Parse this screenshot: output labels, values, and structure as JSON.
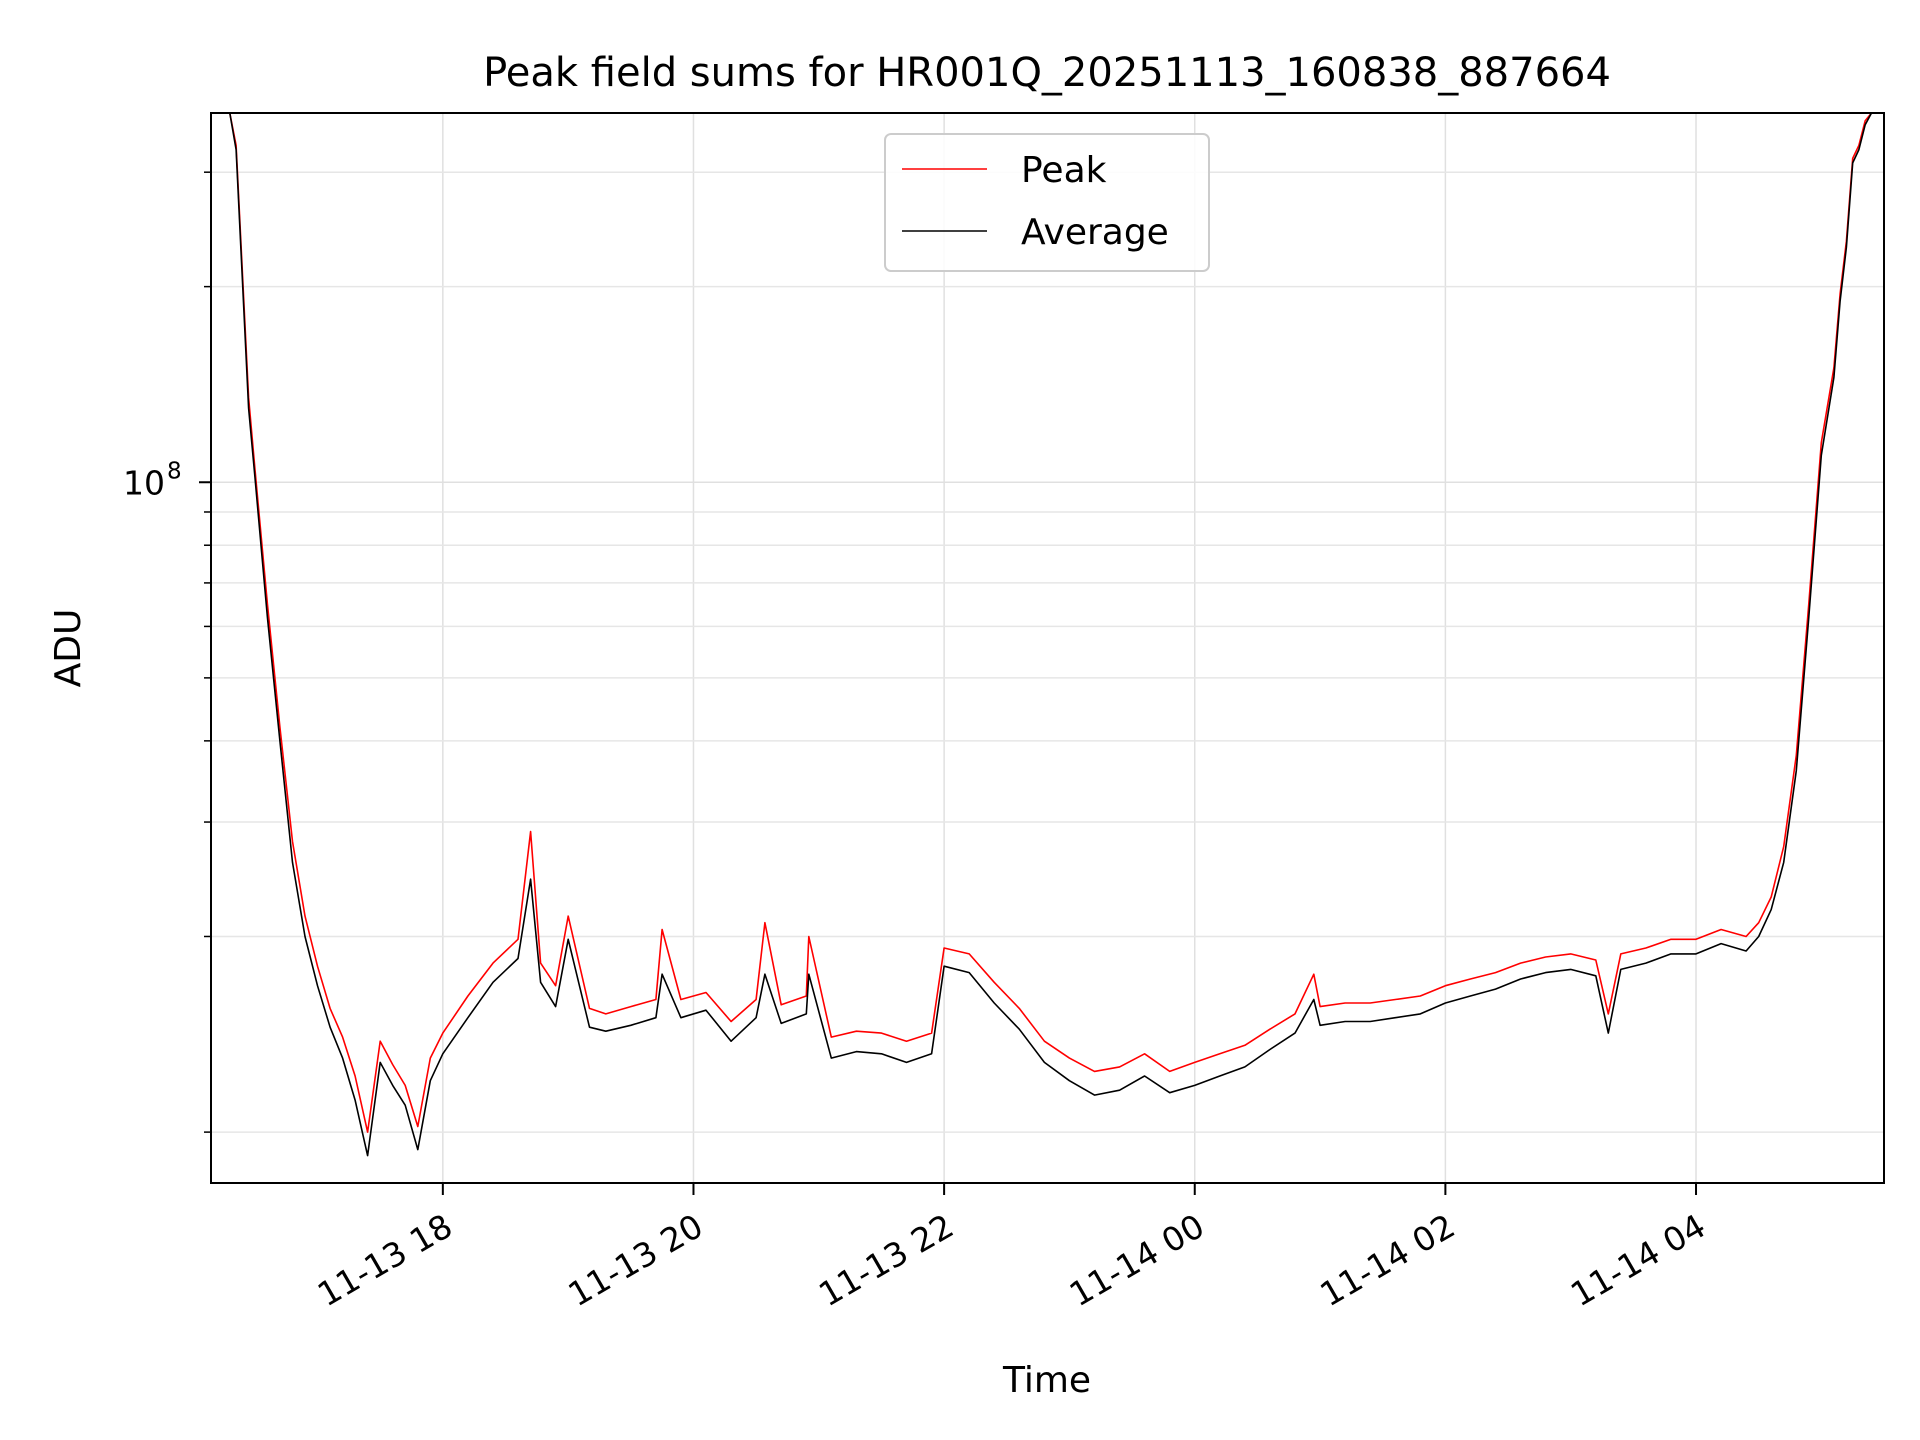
{
  "chart_data": {
    "type": "line",
    "title": "Peak field sums for HR001Q_20251113_160838_887664",
    "xlabel": "Time",
    "ylabel": "ADU",
    "yscale": "log",
    "grid": true,
    "legend_location": "upper center",
    "x_unit": "hours since 2025-11-13 00:00",
    "xlim": [
      16.15,
      29.5
    ],
    "ylim": [
      8350000.0,
      370000000.0
    ],
    "x_ticks": [
      {
        "value": 18,
        "label": "11-13 18"
      },
      {
        "value": 20,
        "label": "11-13 20"
      },
      {
        "value": 22,
        "label": "11-13 22"
      },
      {
        "value": 24,
        "label": "11-14 00"
      },
      {
        "value": 26,
        "label": "11-14 02"
      },
      {
        "value": 28,
        "label": "11-14 04"
      }
    ],
    "y_major_ticks": [
      {
        "value": 100000000,
        "label": "10",
        "exponent": "8"
      }
    ],
    "y_minor_ticks": [
      10000000.0,
      20000000.0,
      30000000.0,
      40000000.0,
      50000000.0,
      60000000.0,
      70000000.0,
      80000000.0,
      90000000.0,
      200000000.0,
      300000000.0
    ],
    "series": [
      {
        "name": "Peak",
        "color": "#ff0000",
        "x": [
          16.15,
          16.3,
          16.35,
          16.45,
          16.5,
          16.6,
          16.7,
          16.8,
          16.9,
          17.0,
          17.1,
          17.2,
          17.3,
          17.4,
          17.5,
          17.6,
          17.7,
          17.8,
          17.9,
          18.0,
          18.2,
          18.4,
          18.6,
          18.7,
          18.78,
          18.9,
          19.0,
          19.17,
          19.3,
          19.5,
          19.7,
          19.75,
          19.9,
          20.1,
          20.3,
          20.5,
          20.57,
          20.7,
          20.9,
          20.92,
          21.1,
          21.3,
          21.5,
          21.7,
          21.9,
          22.0,
          22.2,
          22.4,
          22.6,
          22.8,
          23.0,
          23.2,
          23.4,
          23.6,
          23.8,
          24.0,
          24.2,
          24.4,
          24.6,
          24.8,
          24.95,
          25.0,
          25.2,
          25.4,
          25.6,
          25.8,
          26.0,
          26.2,
          26.4,
          26.6,
          26.8,
          27.0,
          27.2,
          27.3,
          27.4,
          27.6,
          27.8,
          28.0,
          28.2,
          28.4,
          28.5,
          28.6,
          28.7,
          28.8,
          28.9,
          29.0,
          29.1,
          29.15,
          29.2,
          29.25,
          29.3,
          29.35,
          29.4,
          29.5
        ],
        "y": [
          370000000.0,
          370000000.0,
          330000000.0,
          135000000.0,
          105000000.0,
          65000000.0,
          42000000.0,
          28000000.0,
          21500000.0,
          18000000.0,
          15500000.0,
          14000000.0,
          12200000.0,
          10000000.0,
          13800000.0,
          12700000.0,
          11800000.0,
          10200000.0,
          13000000.0,
          14200000.0,
          16200000.0,
          18200000.0,
          19800000.0,
          29000000.0,
          18200000.0,
          16800000.0,
          21500000.0,
          15500000.0,
          15200000.0,
          15600000.0,
          16000000.0,
          20500000.0,
          16000000.0,
          16400000.0,
          14800000.0,
          16000000.0,
          21000000.0,
          15700000.0,
          16200000.0,
          20000000.0,
          14000000.0,
          14300000.0,
          14200000.0,
          13800000.0,
          14200000.0,
          19200000.0,
          18800000.0,
          17000000.0,
          15500000.0,
          13800000.0,
          13000000.0,
          12400000.0,
          12600000.0,
          13200000.0,
          12400000.0,
          12800000.0,
          13200000.0,
          13600000.0,
          14400000.0,
          15200000.0,
          17500000.0,
          15600000.0,
          15800000.0,
          15800000.0,
          16000000.0,
          16200000.0,
          16800000.0,
          17200000.0,
          17600000.0,
          18200000.0,
          18600000.0,
          18800000.0,
          18400000.0,
          15200000.0,
          18800000.0,
          19200000.0,
          19800000.0,
          19800000.0,
          20500000.0,
          20000000.0,
          21000000.0,
          23000000.0,
          27500000.0,
          38000000.0,
          65000000.0,
          115000000.0,
          150000000.0,
          195000000.0,
          235000000.0,
          315000000.0,
          330000000.0,
          360000000.0,
          370000000.0,
          370000000.0
        ]
      },
      {
        "name": "Average",
        "color": "#000000",
        "x": [
          16.15,
          16.3,
          16.35,
          16.45,
          16.5,
          16.6,
          16.7,
          16.8,
          16.9,
          17.0,
          17.1,
          17.2,
          17.3,
          17.4,
          17.5,
          17.6,
          17.7,
          17.8,
          17.9,
          18.0,
          18.2,
          18.4,
          18.6,
          18.7,
          18.78,
          18.9,
          19.0,
          19.17,
          19.3,
          19.5,
          19.7,
          19.75,
          19.9,
          20.1,
          20.3,
          20.5,
          20.57,
          20.7,
          20.9,
          20.92,
          21.1,
          21.3,
          21.5,
          21.7,
          21.9,
          22.0,
          22.2,
          22.4,
          22.6,
          22.8,
          23.0,
          23.2,
          23.4,
          23.6,
          23.8,
          24.0,
          24.2,
          24.4,
          24.6,
          24.8,
          24.95,
          25.0,
          25.2,
          25.4,
          25.6,
          25.8,
          26.0,
          26.2,
          26.4,
          26.6,
          26.8,
          27.0,
          27.2,
          27.3,
          27.4,
          27.6,
          27.8,
          28.0,
          28.2,
          28.4,
          28.5,
          28.6,
          28.7,
          28.8,
          28.9,
          29.0,
          29.1,
          29.15,
          29.2,
          29.25,
          29.3,
          29.35,
          29.4,
          29.5
        ],
        "y": [
          370000000.0,
          370000000.0,
          325000000.0,
          130000000.0,
          102000000.0,
          62000000.0,
          40000000.0,
          26000000.0,
          20000000.0,
          16800000.0,
          14500000.0,
          13000000.0,
          11200000.0,
          9200000.0,
          12800000.0,
          11800000.0,
          11000000.0,
          9400000.0,
          12000000.0,
          13200000.0,
          15000000.0,
          17000000.0,
          18500000.0,
          24500000.0,
          17000000.0,
          15600000.0,
          19800000.0,
          14500000.0,
          14300000.0,
          14600000.0,
          15000000.0,
          17500000.0,
          15000000.0,
          15400000.0,
          13800000.0,
          15000000.0,
          17500000.0,
          14700000.0,
          15200000.0,
          17500000.0,
          13000000.0,
          13300000.0,
          13200000.0,
          12800000.0,
          13200000.0,
          18000000.0,
          17600000.0,
          15800000.0,
          14400000.0,
          12800000.0,
          12000000.0,
          11400000.0,
          11600000.0,
          12200000.0,
          11500000.0,
          11800000.0,
          12200000.0,
          12600000.0,
          13400000.0,
          14200000.0,
          16000000.0,
          14600000.0,
          14800000.0,
          14800000.0,
          15000000.0,
          15200000.0,
          15800000.0,
          16200000.0,
          16600000.0,
          17200000.0,
          17600000.0,
          17800000.0,
          17400000.0,
          14200000.0,
          17800000.0,
          18200000.0,
          18800000.0,
          18800000.0,
          19500000.0,
          19000000.0,
          20000000.0,
          22000000.0,
          26000000.0,
          36000000.0,
          62000000.0,
          110000000.0,
          145000000.0,
          190000000.0,
          230000000.0,
          310000000.0,
          325000000.0,
          355000000.0,
          370000000.0,
          370000000.0
        ]
      }
    ]
  }
}
